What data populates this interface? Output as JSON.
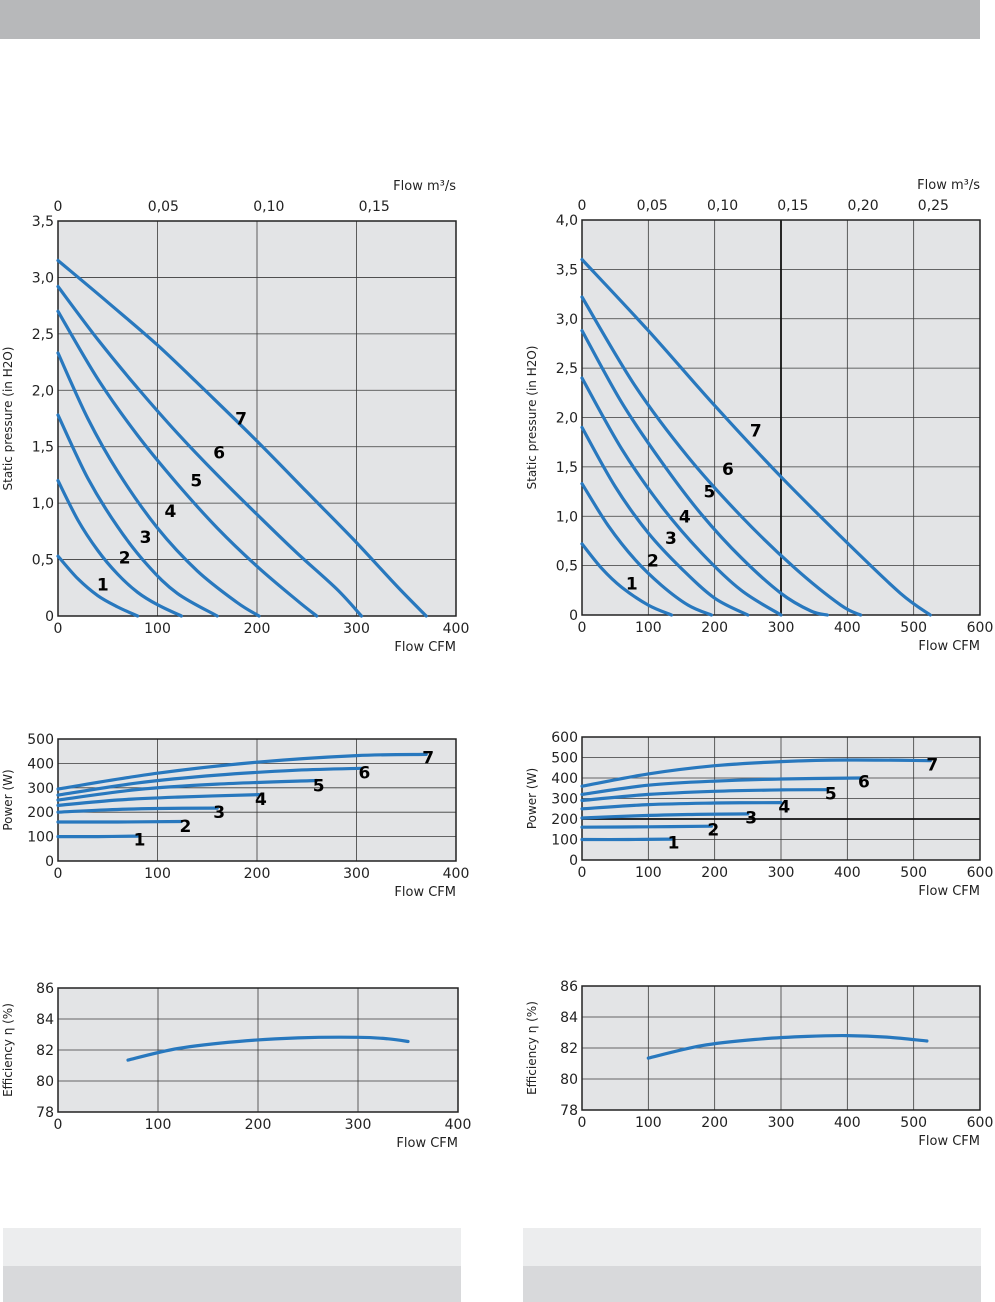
{
  "colors": {
    "curve": "#2878be",
    "plot_bg": "#e3e4e6",
    "grid": "#3a3a3a",
    "header": "#b7b8ba"
  },
  "chart_data": [
    {
      "id": "pressure-left",
      "type": "line",
      "xlabel": "Flow CFM",
      "ylabel": "Static pressure (in H2O)",
      "top_axis_label": "Flow m³/s",
      "xlim": [
        0,
        400
      ],
      "ylim": [
        0,
        3.5
      ],
      "xticks": [
        "0",
        "100",
        "200",
        "300",
        "400"
      ],
      "yticks": [
        "0",
        "0,5",
        "1,0",
        "1,5",
        "2,0",
        "2,5",
        "3,0",
        "3,5"
      ],
      "top_ticks": [
        {
          "label": "0",
          "cfm": 0
        },
        {
          "label": "0,05",
          "cfm": 105.9
        },
        {
          "label": "0,10",
          "cfm": 211.9
        },
        {
          "label": "0,15",
          "cfm": 317.8
        }
      ],
      "series": [
        {
          "name": "1",
          "points": [
            [
              0,
              0.53
            ],
            [
              20,
              0.33
            ],
            [
              40,
              0.18
            ],
            [
              60,
              0.08
            ],
            [
              80,
              0
            ]
          ],
          "label_at": [
            45,
            0.28
          ]
        },
        {
          "name": "2",
          "points": [
            [
              0,
              1.2
            ],
            [
              20,
              0.85
            ],
            [
              40,
              0.58
            ],
            [
              60,
              0.37
            ],
            [
              80,
              0.21
            ],
            [
              100,
              0.1
            ],
            [
              124,
              0
            ]
          ],
          "label_at": [
            67,
            0.52
          ]
        },
        {
          "name": "3",
          "points": [
            [
              0,
              1.78
            ],
            [
              30,
              1.22
            ],
            [
              60,
              0.79
            ],
            [
              90,
              0.45
            ],
            [
              120,
              0.2
            ],
            [
              160,
              0
            ]
          ],
          "label_at": [
            88,
            0.7
          ]
        },
        {
          "name": "4",
          "points": [
            [
              0,
              2.33
            ],
            [
              30,
              1.75
            ],
            [
              60,
              1.28
            ],
            [
              100,
              0.78
            ],
            [
              140,
              0.4
            ],
            [
              180,
              0.12
            ],
            [
              202,
              0
            ]
          ],
          "label_at": [
            113,
            0.93
          ]
        },
        {
          "name": "5",
          "points": [
            [
              0,
              2.7
            ],
            [
              40,
              2.1
            ],
            [
              80,
              1.6
            ],
            [
              120,
              1.17
            ],
            [
              160,
              0.78
            ],
            [
              200,
              0.44
            ],
            [
              240,
              0.14
            ],
            [
              260,
              0
            ]
          ],
          "label_at": [
            139,
            1.2
          ]
        },
        {
          "name": "6",
          "points": [
            [
              0,
              2.92
            ],
            [
              40,
              2.45
            ],
            [
              80,
              2.02
            ],
            [
              120,
              1.62
            ],
            [
              160,
              1.25
            ],
            [
              200,
              0.9
            ],
            [
              240,
              0.56
            ],
            [
              280,
              0.24
            ],
            [
              305,
              0
            ]
          ],
          "label_at": [
            162,
            1.45
          ]
        },
        {
          "name": "7",
          "points": [
            [
              0,
              3.15
            ],
            [
              50,
              2.78
            ],
            [
              100,
              2.4
            ],
            [
              150,
              1.98
            ],
            [
              200,
              1.55
            ],
            [
              250,
              1.1
            ],
            [
              300,
              0.65
            ],
            [
              340,
              0.27
            ],
            [
              370,
              0
            ]
          ],
          "label_at": [
            184,
            1.75
          ]
        }
      ]
    },
    {
      "id": "pressure-right",
      "type": "line",
      "xlabel": "Flow CFM",
      "ylabel": "Static pressure (in H2O)",
      "top_axis_label": "Flow m³/s",
      "xlim": [
        0,
        600
      ],
      "ylim": [
        0,
        4.0
      ],
      "xticks": [
        "0",
        "100",
        "200",
        "300",
        "400",
        "500",
        "600"
      ],
      "yticks": [
        "0",
        "0,5",
        "1,0",
        "1,5",
        "2,0",
        "2,5",
        "3,0",
        "3,5",
        "4,0"
      ],
      "top_ticks": [
        {
          "label": "0",
          "cfm": 0
        },
        {
          "label": "0,05",
          "cfm": 105.9
        },
        {
          "label": "0,10",
          "cfm": 211.9
        },
        {
          "label": "0,15",
          "cfm": 317.8
        },
        {
          "label": "0,20",
          "cfm": 423.8
        },
        {
          "label": "0,25",
          "cfm": 529.7
        }
      ],
      "series": [
        {
          "name": "1",
          "points": [
            [
              0,
              0.72
            ],
            [
              30,
              0.47
            ],
            [
              60,
              0.28
            ],
            [
              100,
              0.1
            ],
            [
              135,
              0
            ]
          ],
          "label_at": [
            75,
            0.32
          ]
        },
        {
          "name": "2",
          "points": [
            [
              0,
              1.33
            ],
            [
              40,
              0.9
            ],
            [
              80,
              0.56
            ],
            [
              120,
              0.3
            ],
            [
              160,
              0.1
            ],
            [
              195,
              0
            ]
          ],
          "label_at": [
            107,
            0.55
          ]
        },
        {
          "name": "3",
          "points": [
            [
              0,
              1.9
            ],
            [
              50,
              1.3
            ],
            [
              100,
              0.83
            ],
            [
              150,
              0.47
            ],
            [
              200,
              0.17
            ],
            [
              250,
              0
            ]
          ],
          "label_at": [
            134,
            0.78
          ]
        },
        {
          "name": "4",
          "points": [
            [
              0,
              2.4
            ],
            [
              60,
              1.68
            ],
            [
              120,
              1.1
            ],
            [
              180,
              0.63
            ],
            [
              240,
              0.25
            ],
            [
              300,
              0
            ]
          ],
          "label_at": [
            155,
            1.0
          ]
        },
        {
          "name": "5",
          "points": [
            [
              0,
              2.88
            ],
            [
              60,
              2.15
            ],
            [
              120,
              1.55
            ],
            [
              180,
              1.02
            ],
            [
              240,
              0.58
            ],
            [
              300,
              0.22
            ],
            [
              345,
              0.04
            ],
            [
              370,
              0
            ]
          ],
          "label_at": [
            192,
            1.25
          ]
        },
        {
          "name": "6",
          "points": [
            [
              0,
              3.22
            ],
            [
              80,
              2.32
            ],
            [
              160,
              1.6
            ],
            [
              240,
              1.0
            ],
            [
              320,
              0.48
            ],
            [
              390,
              0.1
            ],
            [
              420,
              0
            ]
          ],
          "label_at": [
            220,
            1.48
          ]
        },
        {
          "name": "7",
          "points": [
            [
              0,
              3.6
            ],
            [
              100,
              2.88
            ],
            [
              200,
              2.12
            ],
            [
              300,
              1.4
            ],
            [
              400,
              0.73
            ],
            [
              480,
              0.22
            ],
            [
              525,
              0
            ]
          ],
          "label_at": [
            262,
            1.87
          ]
        }
      ]
    },
    {
      "id": "power-left",
      "type": "line",
      "xlabel": "Flow CFM",
      "ylabel": "Power (W)",
      "xlim": [
        0,
        400
      ],
      "ylim": [
        0,
        500
      ],
      "xticks": [
        "0",
        "100",
        "200",
        "300",
        "400"
      ],
      "yticks": [
        "0",
        "100",
        "200",
        "300",
        "400",
        "500"
      ],
      "series": [
        {
          "name": "1",
          "points": [
            [
              0,
              100
            ],
            [
              40,
              100
            ],
            [
              80,
              102
            ]
          ],
          "label_at": [
            82,
            88
          ]
        },
        {
          "name": "2",
          "points": [
            [
              0,
              160
            ],
            [
              60,
              160
            ],
            [
              124,
              162
            ]
          ],
          "label_at": [
            128,
            143
          ]
        },
        {
          "name": "3",
          "points": [
            [
              0,
              200
            ],
            [
              50,
              210
            ],
            [
              100,
              215
            ],
            [
              160,
              217
            ]
          ],
          "label_at": [
            162,
            200
          ]
        },
        {
          "name": "4",
          "points": [
            [
              0,
              228
            ],
            [
              60,
              250
            ],
            [
              120,
              262
            ],
            [
              202,
              272
            ]
          ],
          "label_at": [
            204,
            255
          ]
        },
        {
          "name": "5",
          "points": [
            [
              0,
              250
            ],
            [
              80,
              293
            ],
            [
              160,
              315
            ],
            [
              260,
              330
            ]
          ],
          "label_at": [
            262,
            310
          ]
        },
        {
          "name": "6",
          "points": [
            [
              0,
              270
            ],
            [
              80,
              320
            ],
            [
              160,
              352
            ],
            [
              240,
              372
            ],
            [
              305,
              380
            ]
          ],
          "label_at": [
            308,
            363
          ]
        },
        {
          "name": "7",
          "points": [
            [
              0,
              295
            ],
            [
              100,
              360
            ],
            [
              200,
              405
            ],
            [
              300,
              432
            ],
            [
              370,
              437
            ]
          ],
          "label_at": [
            372,
            425
          ]
        }
      ]
    },
    {
      "id": "power-right",
      "type": "line",
      "xlabel": "Flow CFM",
      "ylabel": "Power (W)",
      "xlim": [
        0,
        600
      ],
      "ylim": [
        0,
        600
      ],
      "xticks": [
        "0",
        "100",
        "200",
        "300",
        "400",
        "500",
        "600"
      ],
      "yticks": [
        "0",
        "100",
        "200",
        "300",
        "400",
        "500",
        "600"
      ],
      "series": [
        {
          "name": "1",
          "points": [
            [
              0,
              100
            ],
            [
              70,
              100
            ],
            [
              135,
              102
            ]
          ],
          "label_at": [
            138,
            85
          ]
        },
        {
          "name": "2",
          "points": [
            [
              0,
              160
            ],
            [
              100,
              162
            ],
            [
              195,
              165
            ]
          ],
          "label_at": [
            198,
            148
          ]
        },
        {
          "name": "3",
          "points": [
            [
              0,
              205
            ],
            [
              80,
              215
            ],
            [
              160,
              222
            ],
            [
              250,
              225
            ]
          ],
          "label_at": [
            255,
            208
          ]
        },
        {
          "name": "4",
          "points": [
            [
              0,
              250
            ],
            [
              100,
              270
            ],
            [
              200,
              278
            ],
            [
              300,
              280
            ]
          ],
          "label_at": [
            305,
            262
          ]
        },
        {
          "name": "5",
          "points": [
            [
              0,
              290
            ],
            [
              100,
              320
            ],
            [
              200,
              335
            ],
            [
              300,
              342
            ],
            [
              370,
              343
            ]
          ],
          "label_at": [
            375,
            325
          ]
        },
        {
          "name": "6",
          "points": [
            [
              0,
              320
            ],
            [
              100,
              365
            ],
            [
              200,
              385
            ],
            [
              300,
              395
            ],
            [
              420,
              400
            ]
          ],
          "label_at": [
            425,
            383
          ]
        },
        {
          "name": "7",
          "points": [
            [
              0,
              360
            ],
            [
              100,
              420
            ],
            [
              200,
              460
            ],
            [
              300,
              480
            ],
            [
              400,
              488
            ],
            [
              525,
              485
            ]
          ],
          "label_at": [
            528,
            467
          ]
        }
      ]
    },
    {
      "id": "efficiency-left",
      "type": "line",
      "xlabel": "Flow CFM",
      "ylabel": "Efficiency η (%)",
      "xlim": [
        0,
        400
      ],
      "ylim": [
        78,
        86
      ],
      "xticks": [
        "0",
        "100",
        "200",
        "300",
        "400"
      ],
      "yticks": [
        "78",
        "80",
        "82",
        "84",
        "86"
      ],
      "series": [
        {
          "name": "",
          "points": [
            [
              70,
              81.35
            ],
            [
              120,
              82.1
            ],
            [
              180,
              82.55
            ],
            [
              240,
              82.78
            ],
            [
              300,
              82.82
            ],
            [
              330,
              82.72
            ],
            [
              350,
              82.55
            ]
          ]
        }
      ]
    },
    {
      "id": "efficiency-right",
      "type": "line",
      "xlabel": "Flow CFM",
      "ylabel": "Efficiency η (%)",
      "xlim": [
        0,
        600
      ],
      "ylim": [
        78,
        86
      ],
      "xticks": [
        "0",
        "100",
        "200",
        "300",
        "400",
        "500",
        "600"
      ],
      "yticks": [
        "78",
        "80",
        "82",
        "84",
        "86"
      ],
      "series": [
        {
          "name": "",
          "points": [
            [
              100,
              81.35
            ],
            [
              180,
              82.15
            ],
            [
              260,
              82.55
            ],
            [
              340,
              82.75
            ],
            [
              400,
              82.8
            ],
            [
              460,
              82.7
            ],
            [
              520,
              82.45
            ]
          ]
        }
      ]
    }
  ]
}
